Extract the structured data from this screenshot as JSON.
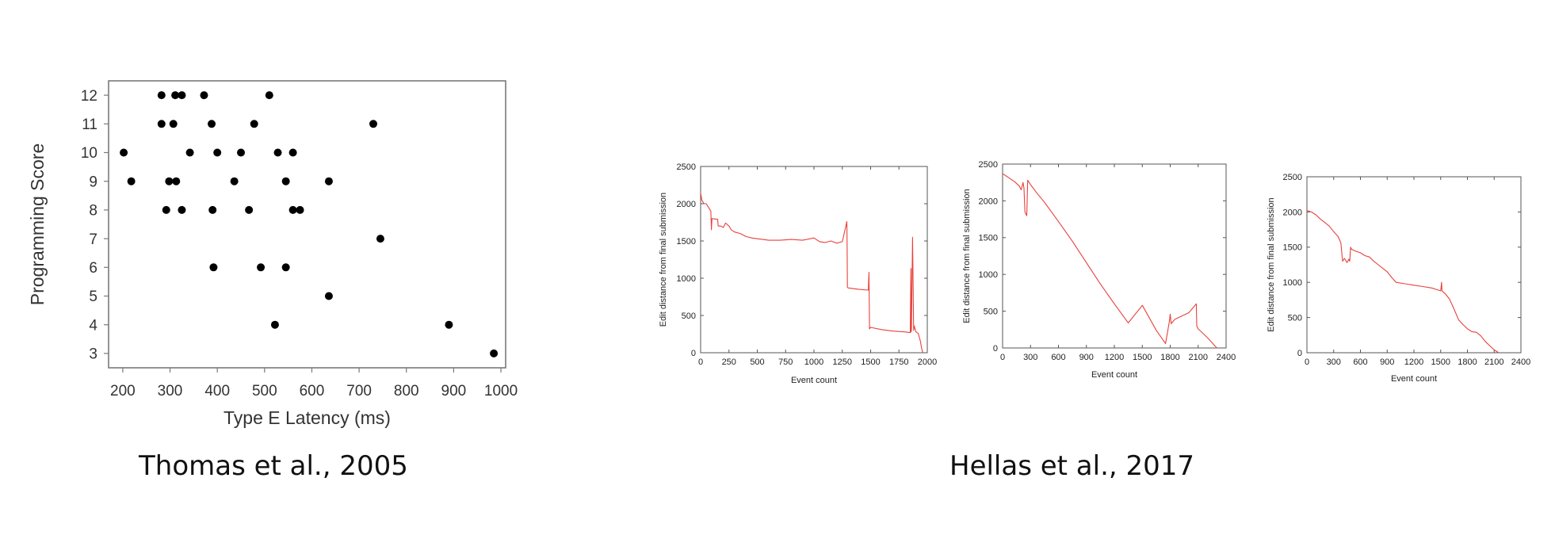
{
  "captions": {
    "left": "Thomas et al., 2005",
    "right": "Hellas et al., 2017"
  },
  "colors": {
    "scatter": "#000000",
    "line": "#e8413c",
    "frame": "#555555"
  },
  "chart_data": [
    {
      "type": "scatter",
      "title": "",
      "xlabel": "Type E Latency (ms)",
      "ylabel": "Programming Score",
      "xlim": [
        170,
        1010
      ],
      "ylim": [
        2.5,
        12.5
      ],
      "xticks": [
        200,
        300,
        400,
        500,
        600,
        700,
        800,
        900,
        1000
      ],
      "yticks": [
        3,
        4,
        5,
        6,
        7,
        8,
        9,
        10,
        11,
        12
      ],
      "grid": false,
      "points": [
        {
          "x": 202,
          "y": 10
        },
        {
          "x": 218,
          "y": 9
        },
        {
          "x": 282,
          "y": 12
        },
        {
          "x": 282,
          "y": 11
        },
        {
          "x": 292,
          "y": 8
        },
        {
          "x": 298,
          "y": 9
        },
        {
          "x": 307,
          "y": 11
        },
        {
          "x": 311,
          "y": 12
        },
        {
          "x": 313,
          "y": 9
        },
        {
          "x": 325,
          "y": 8
        },
        {
          "x": 325,
          "y": 12
        },
        {
          "x": 342,
          "y": 10
        },
        {
          "x": 372,
          "y": 12
        },
        {
          "x": 388,
          "y": 11
        },
        {
          "x": 390,
          "y": 8
        },
        {
          "x": 392,
          "y": 6
        },
        {
          "x": 400,
          "y": 10
        },
        {
          "x": 436,
          "y": 9
        },
        {
          "x": 450,
          "y": 10
        },
        {
          "x": 467,
          "y": 8
        },
        {
          "x": 478,
          "y": 11
        },
        {
          "x": 492,
          "y": 6
        },
        {
          "x": 510,
          "y": 12
        },
        {
          "x": 522,
          "y": 4
        },
        {
          "x": 528,
          "y": 10
        },
        {
          "x": 545,
          "y": 9
        },
        {
          "x": 545,
          "y": 6
        },
        {
          "x": 560,
          "y": 10
        },
        {
          "x": 560,
          "y": 8
        },
        {
          "x": 575,
          "y": 8
        },
        {
          "x": 636,
          "y": 9
        },
        {
          "x": 636,
          "y": 5
        },
        {
          "x": 730,
          "y": 11
        },
        {
          "x": 745,
          "y": 7
        },
        {
          "x": 890,
          "y": 4
        },
        {
          "x": 985,
          "y": 3
        }
      ]
    },
    {
      "type": "line",
      "title": "",
      "xlabel": "Event count",
      "ylabel": "Edit distance from final submission",
      "xlim": [
        0,
        2000
      ],
      "ylim": [
        0,
        2500
      ],
      "xticks": [
        0,
        250,
        500,
        750,
        1000,
        1250,
        1500,
        1750,
        2000
      ],
      "yticks": [
        0,
        500,
        1000,
        1500,
        2000,
        2500
      ],
      "grid": false,
      "x": [
        0,
        10,
        30,
        50,
        70,
        90,
        95,
        100,
        150,
        155,
        180,
        200,
        220,
        250,
        270,
        300,
        350,
        400,
        450,
        500,
        550,
        600,
        700,
        800,
        900,
        1000,
        1050,
        1100,
        1150,
        1200,
        1250,
        1290,
        1292,
        1295,
        1300,
        1350,
        1400,
        1480,
        1485,
        1490,
        1500,
        1600,
        1700,
        1800,
        1850,
        1855,
        1858,
        1860,
        1870,
        1880,
        1885,
        1890,
        1900,
        1920,
        1940,
        1950,
        1960
      ],
      "y": [
        2150,
        2050,
        2000,
        2000,
        1950,
        1900,
        1650,
        1800,
        1790,
        1700,
        1700,
        1680,
        1740,
        1700,
        1650,
        1620,
        1600,
        1560,
        1540,
        1530,
        1520,
        1510,
        1510,
        1520,
        1510,
        1540,
        1490,
        1480,
        1500,
        1470,
        1490,
        1760,
        1490,
        880,
        870,
        860,
        850,
        840,
        1080,
        320,
        340,
        310,
        290,
        280,
        270,
        1130,
        280,
        300,
        1550,
        300,
        360,
        330,
        280,
        260,
        150,
        60,
        0
      ]
    },
    {
      "type": "line",
      "title": "",
      "xlabel": "Event count",
      "ylabel": "Edit distance from final submission",
      "xlim": [
        0,
        2400
      ],
      "ylim": [
        0,
        2500
      ],
      "xticks": [
        0,
        300,
        600,
        900,
        1200,
        1500,
        1800,
        2100,
        2400
      ],
      "yticks": [
        0,
        500,
        1000,
        1500,
        2000,
        2500
      ],
      "grid": false,
      "x": [
        0,
        60,
        130,
        180,
        200,
        220,
        230,
        240,
        250,
        260,
        270,
        280,
        300,
        360,
        450,
        600,
        750,
        900,
        1050,
        1200,
        1350,
        1500,
        1650,
        1750,
        1790,
        1800,
        1810,
        1830,
        1850,
        1900,
        2000,
        2080,
        2085,
        2100,
        2200,
        2300
      ],
      "y": [
        2370,
        2320,
        2260,
        2200,
        2150,
        2250,
        2170,
        1850,
        1820,
        1800,
        2280,
        2260,
        2220,
        2120,
        1980,
        1720,
        1450,
        1160,
        870,
        600,
        340,
        580,
        240,
        60,
        350,
        460,
        330,
        360,
        390,
        420,
        480,
        600,
        300,
        260,
        140,
        0
      ]
    },
    {
      "type": "line",
      "title": "",
      "xlabel": "Event count",
      "ylabel": "Edit distance from final submission",
      "xlim": [
        0,
        2400
      ],
      "ylim": [
        0,
        2500
      ],
      "xticks": [
        0,
        300,
        600,
        900,
        1200,
        1500,
        1800,
        2100,
        2400
      ],
      "yticks": [
        0,
        500,
        1000,
        1500,
        2000,
        2500
      ],
      "grid": false,
      "x": [
        0,
        50,
        100,
        150,
        200,
        250,
        300,
        350,
        380,
        400,
        420,
        450,
        470,
        480,
        490,
        500,
        550,
        600,
        650,
        700,
        750,
        800,
        850,
        900,
        950,
        1000,
        1100,
        1200,
        1300,
        1400,
        1450,
        1500,
        1510,
        1515,
        1520,
        1550,
        1600,
        1650,
        1700,
        1750,
        1800,
        1850,
        1900,
        1950,
        2000,
        2050,
        2100,
        2150
      ],
      "y": [
        2020,
        2000,
        1960,
        1900,
        1850,
        1800,
        1720,
        1650,
        1560,
        1300,
        1340,
        1280,
        1330,
        1300,
        1500,
        1470,
        1440,
        1420,
        1380,
        1360,
        1300,
        1250,
        1200,
        1150,
        1070,
        1000,
        980,
        960,
        940,
        920,
        900,
        880,
        1000,
        880,
        870,
        840,
        760,
        620,
        470,
        400,
        340,
        300,
        290,
        240,
        160,
        100,
        40,
        0
      ]
    }
  ]
}
